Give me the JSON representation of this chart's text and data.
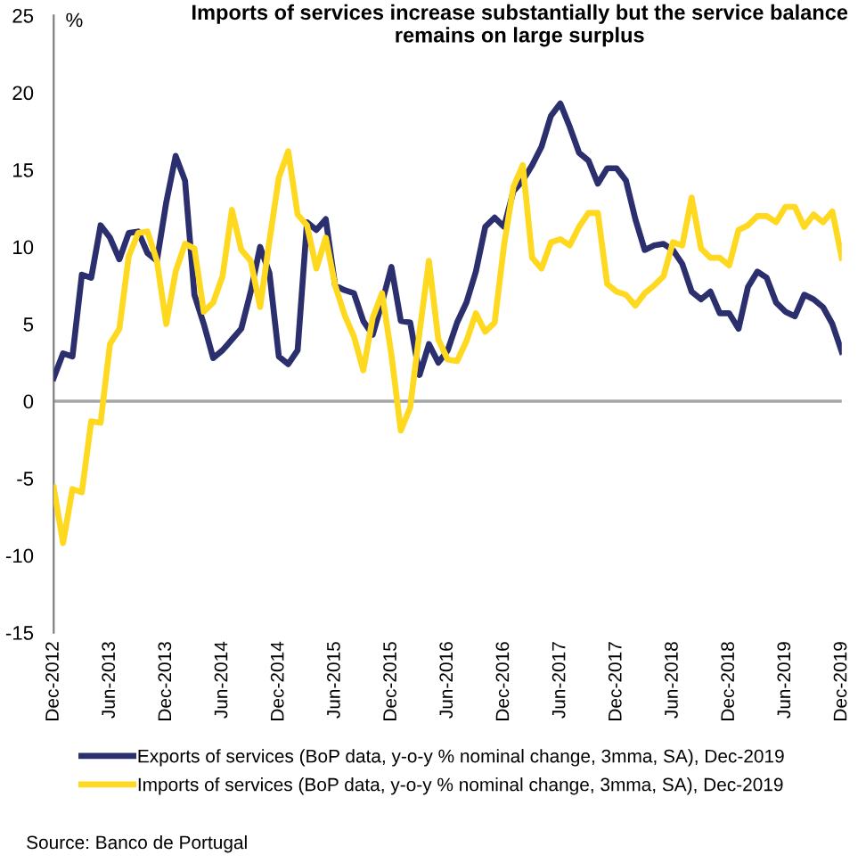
{
  "chart_data": {
    "type": "line",
    "title": "Imports of services increase substantially but the service balance remains on large surplus",
    "ylabel": "%",
    "categories": [
      "Dec-2012",
      null,
      null,
      null,
      null,
      null,
      "Jun-2013",
      null,
      null,
      null,
      null,
      null,
      "Dec-2013",
      null,
      null,
      null,
      null,
      null,
      "Jun-2014",
      null,
      null,
      null,
      null,
      null,
      "Dec-2014",
      null,
      null,
      null,
      null,
      null,
      "Jun-2015",
      null,
      null,
      null,
      null,
      null,
      "Dec-2015",
      null,
      null,
      null,
      null,
      null,
      "Jun-2016",
      null,
      null,
      null,
      null,
      null,
      "Dec-2016",
      null,
      null,
      null,
      null,
      null,
      "Jun-2017",
      null,
      null,
      null,
      null,
      null,
      "Dec-2017",
      null,
      null,
      null,
      null,
      null,
      "Jun-2018",
      null,
      null,
      null,
      null,
      null,
      "Dec-2018",
      null,
      null,
      null,
      null,
      null,
      "Jun-2019",
      null,
      null,
      null,
      null,
      null,
      "Dec-2019"
    ],
    "series": [
      {
        "name": "Exports of services (BoP data, y-o-y % nominal change, 3mma, SA), Dec-2019",
        "color": "#2b2f6e",
        "values": [
          1.5,
          3.1,
          2.9,
          8.2,
          8.0,
          11.4,
          10.6,
          9.2,
          10.9,
          11.0,
          9.6,
          9.1,
          12.9,
          15.9,
          14.3,
          6.9,
          5.0,
          2.8,
          3.3,
          4.0,
          4.7,
          7.1,
          10.0,
          8.3,
          2.9,
          2.4,
          3.3,
          11.6,
          11.1,
          11.8,
          7.5,
          7.2,
          7.0,
          5.2,
          4.3,
          6.4,
          8.7,
          5.2,
          5.1,
          1.7,
          3.7,
          2.5,
          3.3,
          5.1,
          6.4,
          8.4,
          11.3,
          11.9,
          11.3,
          13.6,
          14.3,
          15.3,
          16.5,
          18.5,
          19.3,
          17.8,
          16.1,
          15.6,
          14.1,
          15.1,
          15.1,
          14.3,
          11.8,
          9.8,
          10.1,
          10.2,
          9.8,
          8.9,
          7.1,
          6.6,
          7.1,
          5.7,
          5.7,
          4.7,
          7.4,
          8.4,
          8.0,
          6.4,
          5.8,
          5.5,
          6.9,
          6.6,
          6.1,
          5.0,
          3.2
        ]
      },
      {
        "name": "Imports of services (BoP data, y-o-y % nominal change, 3mma, SA), Dec-2019",
        "color": "#ffd820",
        "values": [
          -5.6,
          -9.2,
          -5.7,
          -5.9,
          -1.3,
          -1.4,
          3.7,
          4.7,
          9.4,
          10.9,
          11.0,
          9.1,
          5.0,
          8.4,
          10.2,
          9.9,
          5.8,
          6.4,
          8.1,
          12.4,
          9.8,
          9.1,
          6.1,
          10.4,
          14.5,
          16.2,
          12.1,
          11.4,
          8.6,
          10.6,
          7.5,
          5.6,
          4.2,
          2.0,
          5.4,
          7.0,
          3.0,
          -1.9,
          -0.4,
          4.5,
          9.1,
          4.0,
          2.7,
          2.6,
          3.9,
          5.7,
          4.5,
          5.1,
          10.1,
          13.9,
          15.3,
          9.3,
          8.6,
          10.3,
          10.5,
          10.1,
          11.3,
          12.2,
          12.2,
          7.6,
          7.1,
          6.9,
          6.2,
          7.0,
          7.5,
          8.1,
          10.3,
          10.1,
          13.2,
          9.9,
          9.3,
          9.3,
          8.8,
          11.1,
          11.4,
          12.0,
          12.0,
          11.6,
          12.6,
          12.6,
          11.3,
          12.1,
          11.6,
          12.3,
          9.3
        ]
      }
    ],
    "ylim": [
      -15,
      25
    ],
    "yticks": [
      -15,
      -10,
      -5,
      0,
      5,
      10,
      15,
      20,
      25
    ],
    "grid": false,
    "legend": "bottom",
    "line_style": "solid",
    "marker": "none",
    "ref_lines": [
      {
        "axis": "y",
        "value": 0,
        "color": "#a6a6a6"
      }
    ],
    "annotations": [
      "Source: Banco de Portugal"
    ]
  }
}
